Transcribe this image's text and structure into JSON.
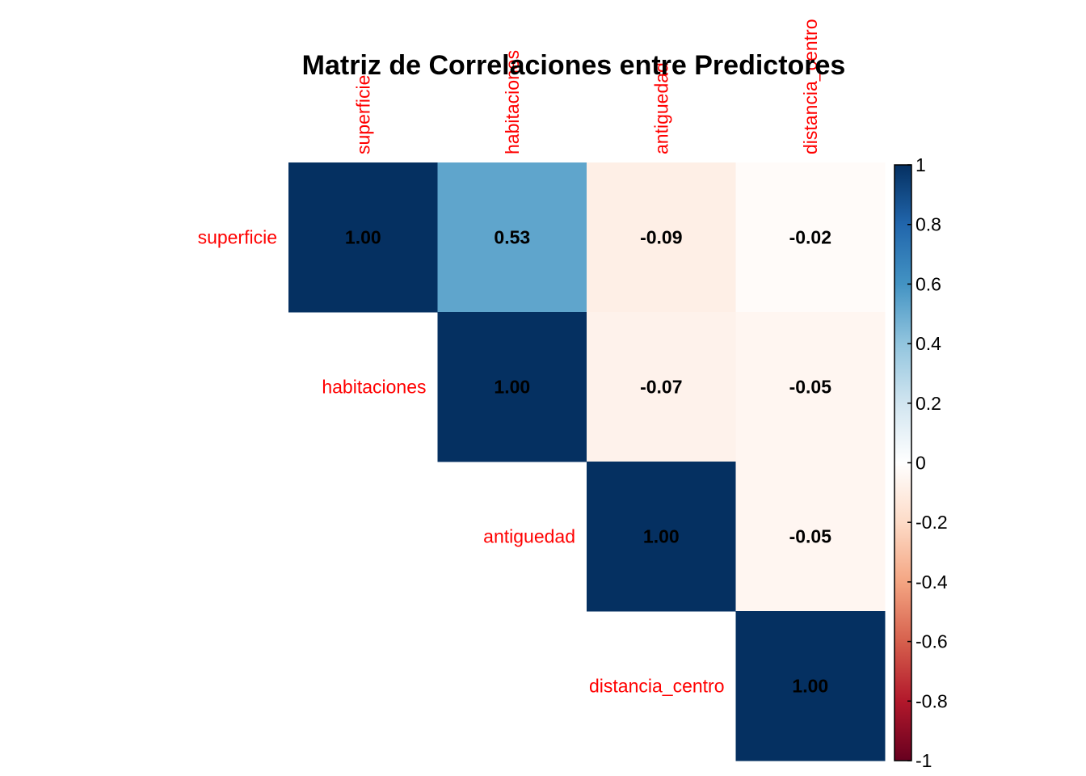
{
  "chart_data": {
    "type": "heatmap",
    "title": "Matriz de Correlaciones entre Predictores",
    "variables": [
      "superficie",
      "habitaciones",
      "antiguedad",
      "distancia_centro"
    ],
    "layout": "upper",
    "matrix": [
      [
        1.0,
        0.53,
        -0.09,
        -0.02
      ],
      [
        0.53,
        1.0,
        -0.07,
        -0.05
      ],
      [
        -0.09,
        -0.07,
        1.0,
        -0.05
      ],
      [
        -0.02,
        -0.05,
        -0.05,
        1.0
      ]
    ],
    "cell_labels": [
      [
        "1.00",
        "0.53",
        "-0.09",
        "-0.02"
      ],
      [
        "",
        "1.00",
        "-0.07",
        "-0.05"
      ],
      [
        "",
        "",
        "1.00",
        "-0.05"
      ],
      [
        "",
        "",
        "",
        "1.00"
      ]
    ],
    "colorbar": {
      "range": [
        -1,
        1
      ],
      "ticks": [
        "1",
        "0.8",
        "0.6",
        "0.4",
        "0.2",
        "0",
        "-0.2",
        "-0.4",
        "-0.6",
        "-0.8",
        "-1"
      ],
      "colors": {
        "-1": "#67001f",
        "-0.8": "#b2182b",
        "-0.6": "#d6604d",
        "-0.4": "#f4a582",
        "-0.2": "#fddbc7",
        "0": "#ffffff",
        "0.2": "#d1e5f0",
        "0.4": "#92c5de",
        "0.6": "#4393c3",
        "0.8": "#2166ac",
        "1": "#053061"
      }
    },
    "label_color": "#ff0000",
    "value_label_color": "#000000"
  }
}
